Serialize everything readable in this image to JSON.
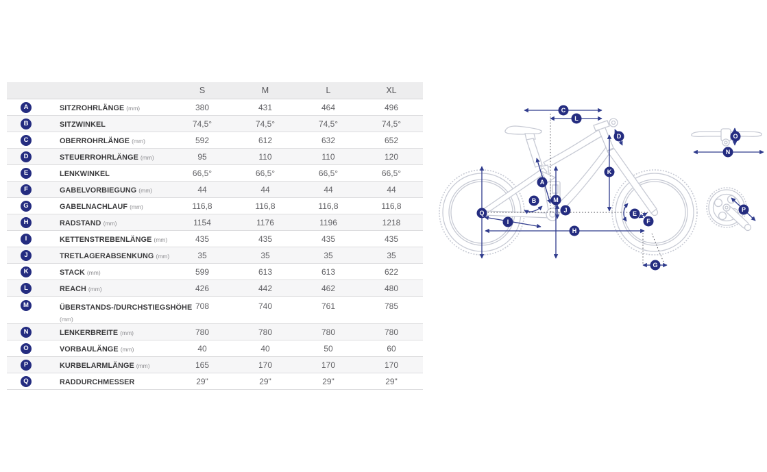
{
  "chart_data": {
    "type": "table",
    "title": "Bike geometry table (Rahmengeometrie)",
    "size_headers": [
      "S",
      "M",
      "L",
      "XL"
    ],
    "rows": [
      {
        "marker": "A",
        "label": "SITZROHRLÄNGE",
        "unit": "(mm)",
        "values": [
          "380",
          "431",
          "464",
          "496"
        ]
      },
      {
        "marker": "B",
        "label": "SITZWINKEL",
        "unit": "",
        "values": [
          "74,5°",
          "74,5°",
          "74,5°",
          "74,5°"
        ]
      },
      {
        "marker": "C",
        "label": "OBERROHRLÄNGE",
        "unit": "(mm)",
        "values": [
          "592",
          "612",
          "632",
          "652"
        ]
      },
      {
        "marker": "D",
        "label": "STEUERROHRLÄNGE",
        "unit": "(mm)",
        "values": [
          "95",
          "110",
          "110",
          "120"
        ]
      },
      {
        "marker": "E",
        "label": "LENKWINKEL",
        "unit": "",
        "values": [
          "66,5°",
          "66,5°",
          "66,5°",
          "66,5°"
        ]
      },
      {
        "marker": "F",
        "label": "GABELVORBIEGUNG",
        "unit": "(mm)",
        "values": [
          "44",
          "44",
          "44",
          "44"
        ]
      },
      {
        "marker": "G",
        "label": "GABELNACHLAUF",
        "unit": "(mm)",
        "values": [
          "116,8",
          "116,8",
          "116,8",
          "116,8"
        ]
      },
      {
        "marker": "H",
        "label": "RADSTAND",
        "unit": "(mm)",
        "values": [
          "1154",
          "1176",
          "1196",
          "1218"
        ]
      },
      {
        "marker": "I",
        "label": "KETTENSTREBENLÄNGE",
        "unit": "(mm)",
        "values": [
          "435",
          "435",
          "435",
          "435"
        ]
      },
      {
        "marker": "J",
        "label": "TRETLAGERABSENKUNG",
        "unit": "(mm)",
        "values": [
          "35",
          "35",
          "35",
          "35"
        ]
      },
      {
        "marker": "K",
        "label": "STACK",
        "unit": "(mm)",
        "values": [
          "599",
          "613",
          "613",
          "622"
        ]
      },
      {
        "marker": "L",
        "label": "REACH",
        "unit": "(mm)",
        "values": [
          "426",
          "442",
          "462",
          "480"
        ]
      },
      {
        "marker": "M",
        "label": "ÜBERSTANDS-/DURCHSTIEGSHÖHE",
        "unit": "(mm)",
        "values": [
          "708",
          "740",
          "761",
          "785"
        ],
        "unit_below": true
      },
      {
        "marker": "N",
        "label": "LENKERBREITE",
        "unit": "(mm)",
        "values": [
          "780",
          "780",
          "780",
          "780"
        ]
      },
      {
        "marker": "O",
        "label": "VORBAULÄNGE",
        "unit": "(mm)",
        "values": [
          "40",
          "40",
          "50",
          "60"
        ]
      },
      {
        "marker": "P",
        "label": "KURBELARMLÄNGE",
        "unit": "(mm)",
        "values": [
          "165",
          "170",
          "170",
          "170"
        ]
      },
      {
        "marker": "Q",
        "label": "RADDURCHMESSER",
        "unit": "",
        "values": [
          "29\"",
          "29\"",
          "29\"",
          "29\""
        ]
      }
    ]
  },
  "diagram": {
    "markers": [
      "A",
      "B",
      "C",
      "D",
      "E",
      "F",
      "G",
      "H",
      "I",
      "J",
      "K",
      "L",
      "M",
      "N",
      "O",
      "P",
      "Q"
    ]
  },
  "colors": {
    "marker_badge": "#242c80",
    "measure_arrow": "#2e3a8c",
    "frame_outline": "#c7cad4"
  }
}
